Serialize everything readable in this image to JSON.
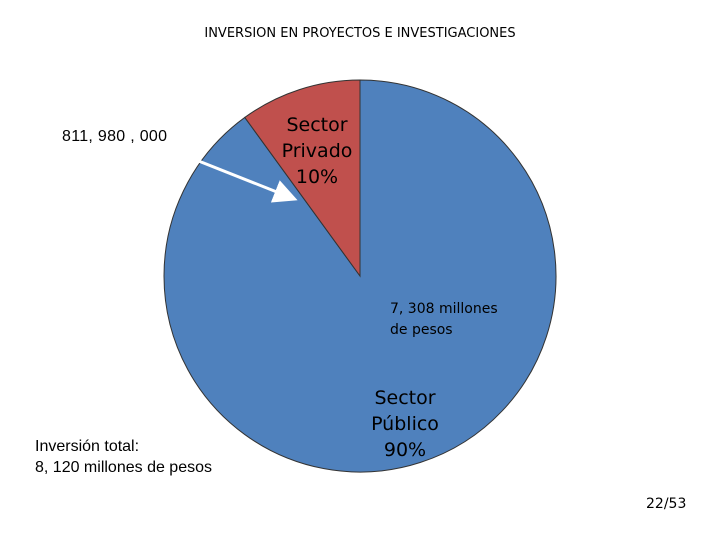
{
  "colors": {
    "background": "#000000",
    "publico": "#4F81BD",
    "privado": "#C0504D",
    "page_bg_visible": "#000000"
  },
  "chart_data": {
    "type": "pie",
    "title": "INVERSION EN PROYECTOS E INVESTIGACIONES",
    "slices": [
      {
        "name": "Sector Privado",
        "label": [
          "Sector",
          "Privado",
          "10%"
        ],
        "value": 10,
        "color": "#C0504D"
      },
      {
        "name": "Sector Público",
        "label": [
          "Sector",
          "Público",
          "90%"
        ],
        "value": 90,
        "color": "#4F81BD"
      }
    ],
    "annotations": {
      "privado_amount": "811, 980 , 000",
      "publico_amount": [
        "7, 308 millones",
        "de pesos"
      ],
      "total": [
        "Inversión total:",
        "8, 120 millones de pesos"
      ]
    }
  },
  "page": {
    "number": "22/53"
  }
}
